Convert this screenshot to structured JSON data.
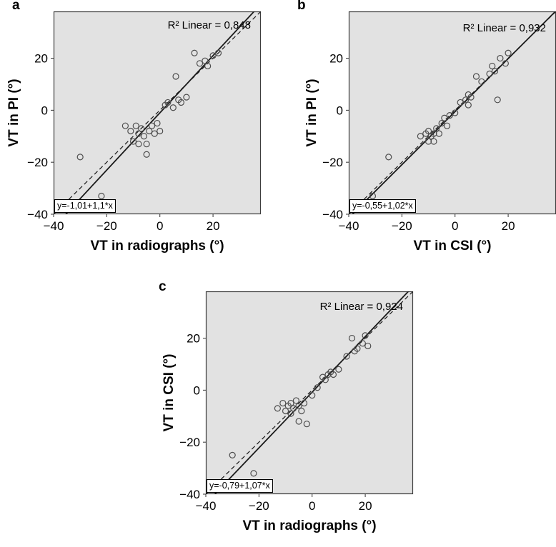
{
  "page": {
    "background": "#ffffff"
  },
  "chart_data": [
    {
      "type": "scatter",
      "panel_label": "a",
      "xlabel": "VT in radiographs (°)",
      "ylabel": "VT in PI (°)",
      "r2_label": "R²  Linear = 0,848",
      "equation_label": "y=-1,01+1,1*x",
      "regression": {
        "intercept": -1.01,
        "slope": 1.1
      },
      "identity_line": true,
      "xlim": [
        -40,
        38
      ],
      "ylim": [
        -40,
        38
      ],
      "xticks": [
        {
          "value": -40,
          "label": "−40"
        },
        {
          "value": -20,
          "label": "−20"
        },
        {
          "value": 0,
          "label": "0"
        },
        {
          "value": 20,
          "label": "20"
        }
      ],
      "yticks": [
        {
          "value": 20,
          "label": "20"
        },
        {
          "value": 0,
          "label": "0"
        },
        {
          "value": -20,
          "label": "−20"
        },
        {
          "value": -40,
          "label": "−40"
        }
      ],
      "plot_bg": "#e2e2e2",
      "frame_color": "#3c3c3c",
      "line_color": "#1a1a1a",
      "point_color": "#4d4d4d",
      "legend_position": "none",
      "grid": false,
      "points": [
        [
          -30,
          -18
        ],
        [
          -22,
          -33
        ],
        [
          -13,
          -6
        ],
        [
          -11,
          -8
        ],
        [
          -10,
          -12
        ],
        [
          -9,
          -6
        ],
        [
          -8,
          -9
        ],
        [
          -8,
          -13
        ],
        [
          -7,
          -7
        ],
        [
          -6,
          -10
        ],
        [
          -5,
          -13
        ],
        [
          -5,
          -17
        ],
        [
          -4,
          -8
        ],
        [
          -3,
          -6
        ],
        [
          -2,
          -9
        ],
        [
          -1,
          -5
        ],
        [
          0,
          -8
        ],
        [
          2,
          2
        ],
        [
          3,
          3
        ],
        [
          5,
          1
        ],
        [
          6,
          13
        ],
        [
          7,
          4
        ],
        [
          8,
          3
        ],
        [
          10,
          5
        ],
        [
          13,
          22
        ],
        [
          15,
          18
        ],
        [
          17,
          19
        ],
        [
          18,
          17
        ],
        [
          20,
          21
        ],
        [
          22,
          22
        ]
      ]
    },
    {
      "type": "scatter",
      "panel_label": "b",
      "xlabel": "VT in CSI (°)",
      "ylabel": "VT in PI (°)",
      "r2_label": "R²  Linear = 0,932",
      "equation_label": "y=-0,55+1,02*x",
      "regression": {
        "intercept": -0.55,
        "slope": 1.02
      },
      "identity_line": true,
      "xlim": [
        -40,
        38
      ],
      "ylim": [
        -40,
        38
      ],
      "xticks": [
        {
          "value": -40,
          "label": "−40"
        },
        {
          "value": -20,
          "label": "−20"
        },
        {
          "value": 0,
          "label": "0"
        },
        {
          "value": 20,
          "label": "20"
        }
      ],
      "yticks": [
        {
          "value": 20,
          "label": "20"
        },
        {
          "value": 0,
          "label": "0"
        },
        {
          "value": -20,
          "label": "−20"
        },
        {
          "value": -40,
          "label": "−40"
        }
      ],
      "plot_bg": "#e2e2e2",
      "frame_color": "#3c3c3c",
      "line_color": "#1a1a1a",
      "point_color": "#4d4d4d",
      "legend_position": "none",
      "grid": false,
      "points": [
        [
          -31,
          -33
        ],
        [
          -25,
          -18
        ],
        [
          -13,
          -10
        ],
        [
          -11,
          -9
        ],
        [
          -10,
          -12
        ],
        [
          -10,
          -8
        ],
        [
          -9,
          -10
        ],
        [
          -8,
          -9
        ],
        [
          -8,
          -12
        ],
        [
          -7,
          -7
        ],
        [
          -6,
          -9
        ],
        [
          -5,
          -5
        ],
        [
          -4,
          -3
        ],
        [
          -3,
          -6
        ],
        [
          -2,
          -2
        ],
        [
          0,
          -1
        ],
        [
          2,
          3
        ],
        [
          4,
          4
        ],
        [
          5,
          2
        ],
        [
          5,
          6
        ],
        [
          6,
          5
        ],
        [
          8,
          13
        ],
        [
          10,
          11
        ],
        [
          13,
          14
        ],
        [
          14,
          17
        ],
        [
          15,
          15
        ],
        [
          16,
          4
        ],
        [
          17,
          20
        ],
        [
          19,
          18
        ],
        [
          20,
          22
        ]
      ]
    },
    {
      "type": "scatter",
      "panel_label": "c",
      "xlabel": "VT in radiographs (°)",
      "ylabel": "VT in CSI (°)",
      "r2_label": "R²  Linear = 0,924",
      "equation_label": "y=-0,79+1,07*x",
      "regression": {
        "intercept": -0.79,
        "slope": 1.07
      },
      "identity_line": true,
      "xlim": [
        -40,
        38
      ],
      "ylim": [
        -40,
        38
      ],
      "xticks": [
        {
          "value": -40,
          "label": "−40"
        },
        {
          "value": -20,
          "label": "−20"
        },
        {
          "value": 0,
          "label": "0"
        },
        {
          "value": 20,
          "label": "20"
        }
      ],
      "yticks": [
        {
          "value": 20,
          "label": "20"
        },
        {
          "value": 0,
          "label": "0"
        },
        {
          "value": -20,
          "label": "−20"
        },
        {
          "value": -40,
          "label": "−40"
        }
      ],
      "plot_bg": "#e2e2e2",
      "frame_color": "#3c3c3c",
      "line_color": "#1a1a1a",
      "point_color": "#4d4d4d",
      "legend_position": "none",
      "grid": false,
      "points": [
        [
          -30,
          -25
        ],
        [
          -22,
          -32
        ],
        [
          -13,
          -7
        ],
        [
          -11,
          -5
        ],
        [
          -10,
          -8
        ],
        [
          -9,
          -6
        ],
        [
          -8,
          -9
        ],
        [
          -8,
          -5
        ],
        [
          -7,
          -7
        ],
        [
          -6,
          -4
        ],
        [
          -5,
          -12
        ],
        [
          -5,
          -6
        ],
        [
          -4,
          -8
        ],
        [
          -3,
          -5
        ],
        [
          -2,
          -13
        ],
        [
          0,
          -2
        ],
        [
          2,
          1
        ],
        [
          4,
          5
        ],
        [
          5,
          4
        ],
        [
          6,
          6
        ],
        [
          7,
          7
        ],
        [
          8,
          6
        ],
        [
          10,
          8
        ],
        [
          13,
          13
        ],
        [
          15,
          20
        ],
        [
          16,
          15
        ],
        [
          17,
          16
        ],
        [
          19,
          18
        ],
        [
          20,
          21
        ],
        [
          21,
          17
        ]
      ]
    }
  ]
}
